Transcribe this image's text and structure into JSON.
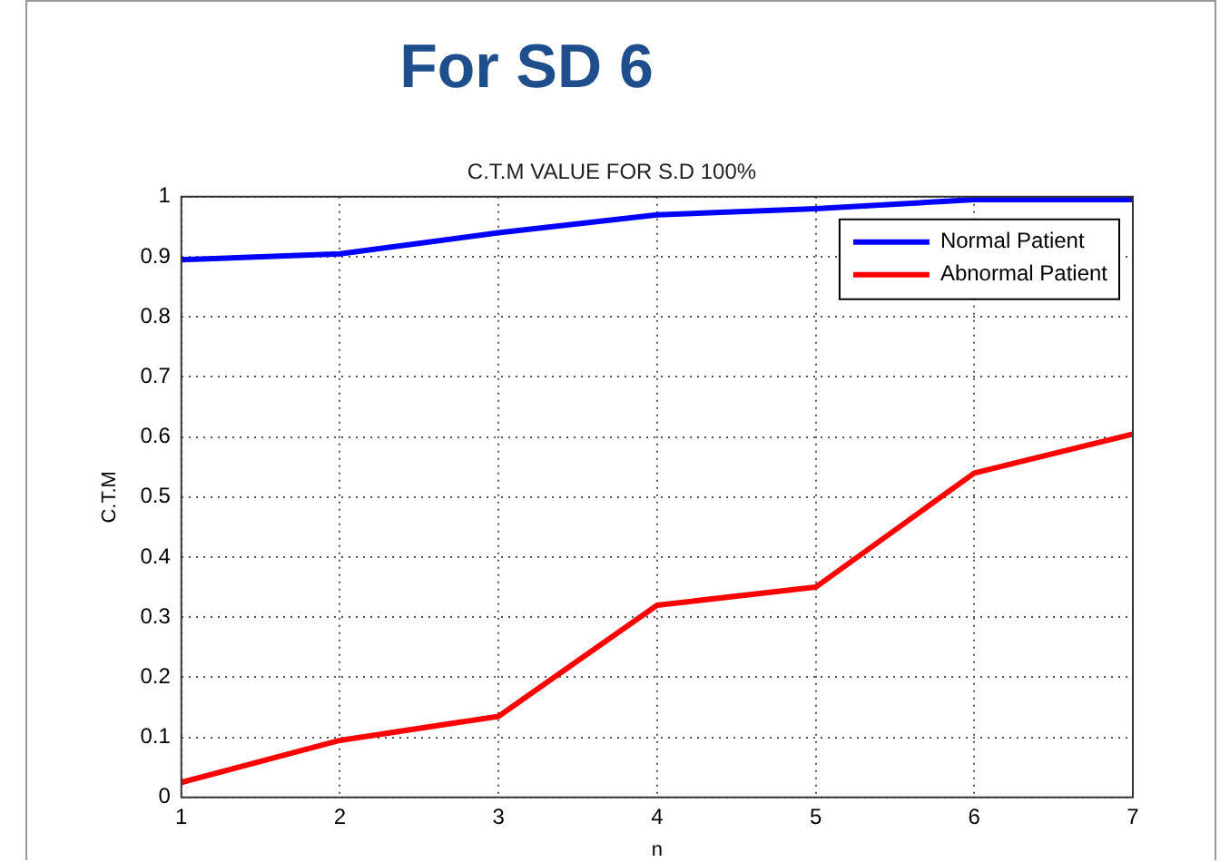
{
  "chart_data": {
    "type": "line",
    "title": "For SD 6",
    "subtitle": "C.T.M VALUE FOR S.D 100%",
    "xlabel": "n",
    "ylabel": "C.T.M",
    "x": [
      1,
      2,
      3,
      4,
      5,
      6,
      7
    ],
    "series": [
      {
        "name": "Normal Patient",
        "color": "#0000ff",
        "values": [
          0.895,
          0.905,
          0.94,
          0.97,
          0.98,
          0.995,
          0.995
        ]
      },
      {
        "name": "Abnormal Patient",
        "color": "#ff0000",
        "values": [
          0.025,
          0.095,
          0.135,
          0.32,
          0.35,
          0.54,
          0.605
        ]
      }
    ],
    "xlim": [
      1,
      7
    ],
    "xticks": [
      1,
      2,
      3,
      4,
      5,
      6,
      7
    ],
    "ylim": [
      0,
      1
    ],
    "yticks": [
      0,
      0.1,
      0.2,
      0.3,
      0.4,
      0.5,
      0.6,
      0.7,
      0.8,
      0.9,
      1
    ],
    "grid": true,
    "legend": "top right",
    "marker": "none",
    "line_style": "solid"
  }
}
